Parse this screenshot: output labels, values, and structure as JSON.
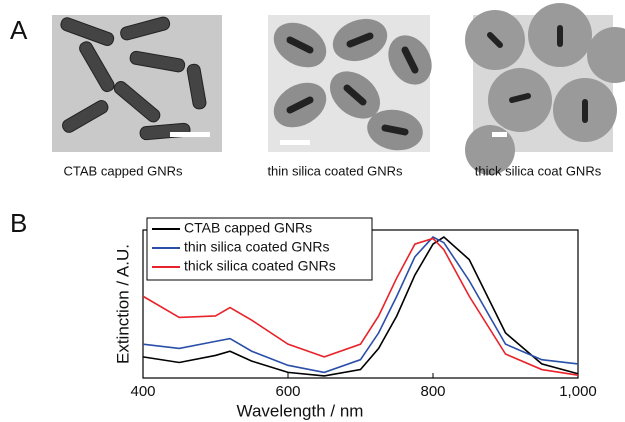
{
  "panel_a": {
    "label": "A",
    "captions": [
      "CTAB capped GNRs",
      "thin silica coated GNRs",
      "thick silica coat GNRs"
    ]
  },
  "panel_b": {
    "label": "B"
  },
  "chart_data": {
    "type": "line",
    "xlabel": "Wavelength / nm",
    "ylabel": "Extinction / A.U.",
    "x": [
      400,
      450,
      500,
      520,
      550,
      600,
      650,
      700,
      725,
      750,
      775,
      800,
      815,
      850,
      900,
      950,
      1000
    ],
    "series": [
      {
        "name": "CTAB capped GNRs",
        "color": "#000000",
        "values": [
          0.15,
          0.11,
          0.16,
          0.19,
          0.12,
          0.04,
          0.015,
          0.06,
          0.21,
          0.44,
          0.73,
          0.95,
          1.0,
          0.84,
          0.32,
          0.1,
          0.03
        ]
      },
      {
        "name": "thin silica coated GNRs",
        "color": "#2a4fa8",
        "values": [
          0.24,
          0.21,
          0.26,
          0.28,
          0.19,
          0.09,
          0.04,
          0.13,
          0.32,
          0.58,
          0.86,
          1.0,
          0.96,
          0.69,
          0.24,
          0.13,
          0.1
        ]
      },
      {
        "name": "thick silica coated GNRs",
        "color": "#e8232a",
        "values": [
          0.58,
          0.43,
          0.44,
          0.5,
          0.41,
          0.24,
          0.15,
          0.24,
          0.44,
          0.71,
          0.95,
          0.99,
          0.91,
          0.58,
          0.17,
          0.06,
          0.02
        ]
      }
    ],
    "xlim": [
      400,
      1000
    ],
    "ylim": [
      0,
      1.05
    ],
    "xticks": [
      400,
      600,
      800,
      {
        "value": 1000,
        "label": "1,000"
      }
    ],
    "legend": "upper-left"
  }
}
